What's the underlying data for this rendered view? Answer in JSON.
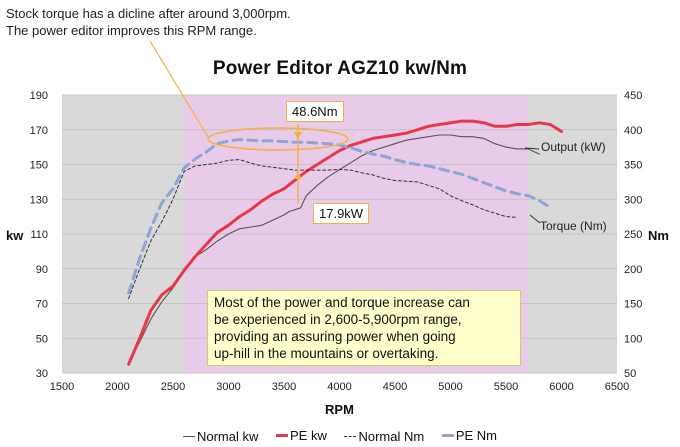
{
  "callout": {
    "line1": "Stock torque has a dicline after around 3,000rpm.",
    "line2": "The power editor improves this RPM range."
  },
  "info_box": {
    "line1": "Most of the power and torque increase can",
    "line2": "be experienced in 2,600-5,900rpm range,",
    "line3": "providing an assuring power when going",
    "line4": "up-hill in the mountains or overtaking."
  },
  "torque_gain_label": "48.6Nm",
  "power_gain_label": "17.9kW",
  "colors": {
    "highlight_band": "#e8cbe8",
    "gray_band": "#d9d9d9",
    "normal_kw": "#555555",
    "pe_kw": "#e8374a",
    "normal_nm": "#333333",
    "pe_nm": "#8fa3d6",
    "accent": "#f5b041"
  },
  "chart_data": {
    "type": "line",
    "title": "Power Editor AGZ10 kw/Nm",
    "xlabel": "RPM",
    "ylabel_left": "kw",
    "ylabel_right": "Nm",
    "xlim": [
      1500,
      6500
    ],
    "ylim_left": [
      30,
      190
    ],
    "ylim_right": [
      50,
      450
    ],
    "xticks": [
      "1500",
      "2000",
      "2500",
      "3000",
      "3500",
      "4000",
      "4500",
      "5000",
      "5500",
      "6000",
      "6500"
    ],
    "yticks_left": [
      "30",
      "50",
      "70",
      "90",
      "110",
      "130",
      "150",
      "170",
      "190"
    ],
    "yticks_right": [
      "50",
      "100",
      "150",
      "200",
      "250",
      "300",
      "350",
      "400",
      "450"
    ],
    "highlight_range": [
      2600,
      5700
    ],
    "grid": true,
    "legend_position": "bottom",
    "series_annotations": [
      {
        "text": "Output (kW)",
        "series": "Normal kw"
      },
      {
        "text": "Torque (Nm)",
        "series": "Normal Nm"
      }
    ],
    "series": [
      {
        "name": "Normal kw",
        "axis": "left",
        "style": "solid",
        "x": [
          2100,
          2200,
          2300,
          2400,
          2500,
          2600,
          2700,
          2800,
          2900,
          3000,
          3100,
          3200,
          3300,
          3400,
          3500,
          3550,
          3600,
          3650,
          3700,
          3800,
          3900,
          4000,
          4100,
          4200,
          4300,
          4400,
          4500,
          4600,
          4700,
          4800,
          4900,
          5000,
          5100,
          5200,
          5300,
          5400,
          5500,
          5600,
          5700,
          5800
        ],
        "y": [
          35,
          48,
          61,
          71,
          79,
          90,
          97,
          101,
          106,
          110,
          113,
          114,
          115,
          118,
          121,
          123,
          124,
          125,
          132,
          138,
          143,
          147,
          151,
          155,
          158,
          160,
          162,
          164,
          165,
          166,
          167,
          167,
          166,
          166,
          165,
          162,
          160,
          159,
          159,
          156
        ]
      },
      {
        "name": "PE kw",
        "axis": "left",
        "style": "solid",
        "x": [
          2100,
          2200,
          2300,
          2400,
          2500,
          2600,
          2700,
          2800,
          2900,
          3000,
          3100,
          3200,
          3300,
          3400,
          3500,
          3600,
          3700,
          3800,
          3900,
          4000,
          4100,
          4200,
          4300,
          4400,
          4500,
          4600,
          4700,
          4800,
          4900,
          5000,
          5100,
          5200,
          5300,
          5400,
          5500,
          5600,
          5700,
          5800,
          5900,
          6000
        ],
        "y": [
          35,
          50,
          66,
          75,
          80,
          89,
          97,
          104,
          111,
          115,
          120,
          124,
          129,
          133,
          136,
          141,
          146,
          150,
          154,
          158,
          161,
          163,
          165,
          166,
          167,
          168,
          170,
          172,
          173,
          174,
          175,
          175,
          174,
          172,
          172,
          173,
          173,
          174,
          173,
          169
        ]
      },
      {
        "name": "Normal Nm",
        "axis": "right",
        "style": "dashed-thin",
        "x": [
          2100,
          2200,
          2300,
          2400,
          2500,
          2600,
          2700,
          2800,
          2900,
          3000,
          3100,
          3200,
          3300,
          3400,
          3500,
          3600,
          3700,
          3800,
          3900,
          4000,
          4100,
          4200,
          4300,
          4400,
          4500,
          4600,
          4700,
          4800,
          4900,
          5000,
          5100,
          5200,
          5300,
          5400,
          5500,
          5600
        ],
        "y": [
          157,
          200,
          240,
          268,
          300,
          340,
          348,
          350,
          352,
          356,
          357,
          352,
          348,
          346,
          344,
          342,
          342,
          342,
          342,
          343,
          342,
          338,
          335,
          330,
          327,
          326,
          325,
          320,
          315,
          305,
          298,
          292,
          285,
          280,
          275,
          274
        ]
      },
      {
        "name": "PE Nm",
        "axis": "right",
        "style": "dashed-thick",
        "x": [
          2100,
          2200,
          2300,
          2400,
          2500,
          2600,
          2700,
          2800,
          2900,
          3000,
          3100,
          3200,
          3300,
          3400,
          3500,
          3600,
          3700,
          3800,
          3900,
          4000,
          4100,
          4200,
          4300,
          4400,
          4500,
          4600,
          4700,
          4800,
          4900,
          5000,
          5100,
          5200,
          5300,
          5400,
          5500,
          5600,
          5700,
          5800,
          5900
        ],
        "y": [
          165,
          215,
          258,
          295,
          315,
          345,
          358,
          368,
          380,
          384,
          386,
          385,
          384,
          384,
          383,
          382,
          382,
          381,
          380,
          378,
          374,
          369,
          365,
          362,
          357,
          353,
          350,
          348,
          344,
          340,
          336,
          330,
          324,
          318,
          312,
          308,
          305,
          298,
          288
        ]
      }
    ]
  }
}
